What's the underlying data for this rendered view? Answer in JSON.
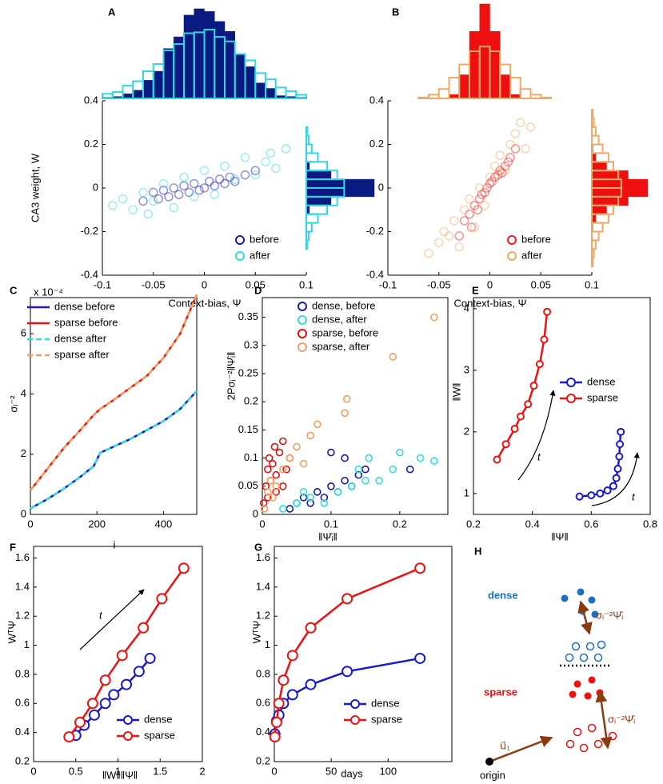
{
  "chart_data": [
    {
      "type": "scatter",
      "panel": "A",
      "ylabel": "CA3 weight, W",
      "xlabel": "Context-bias, Ψ",
      "xlim": [
        -0.1,
        0.1
      ],
      "ylim": [
        -0.4,
        0.4
      ],
      "xticks": [
        -0.1,
        -0.05,
        0,
        0.05,
        0.1
      ],
      "yticks": [
        -0.4,
        -0.2,
        0,
        0.2,
        0.4
      ],
      "marker_opacity": 0.45,
      "legend": "lower right",
      "series": [
        {
          "name": "before",
          "color": "#1a1aa8",
          "x": [
            -0.06,
            -0.05,
            -0.045,
            -0.04,
            -0.035,
            -0.03,
            -0.025,
            -0.02,
            -0.015,
            -0.01,
            -0.005,
            0,
            0.005,
            0.01,
            0.015,
            0.02,
            0.025,
            0.03,
            0.04,
            0.05
          ],
          "values": [
            -0.06,
            -0.02,
            -0.05,
            -0.01,
            -0.04,
            0,
            -0.03,
            0.01,
            -0.02,
            0.02,
            -0.01,
            0,
            0.03,
            0.01,
            0.04,
            0.02,
            0.05,
            0.03,
            0.06,
            0.08
          ]
        },
        {
          "name": "after",
          "color": "#33d6e0",
          "x": [
            -0.09,
            -0.08,
            -0.07,
            -0.06,
            -0.055,
            -0.05,
            -0.04,
            -0.03,
            -0.02,
            -0.01,
            0,
            0.01,
            0.02,
            0.03,
            0.04,
            0.05,
            0.06,
            0.065,
            0.07,
            0.08
          ],
          "values": [
            -0.08,
            -0.05,
            -0.1,
            -0.02,
            -0.12,
            -0.06,
            0.02,
            -0.09,
            0.05,
            -0.04,
            0.08,
            -0.03,
            0.1,
            0.04,
            0.14,
            0.06,
            0.12,
            0.16,
            0.09,
            0.18
          ]
        }
      ],
      "histograms": [
        {
          "side": "top",
          "bins": [
            -0.1,
            -0.09,
            -0.08,
            -0.07,
            -0.06,
            -0.05,
            -0.04,
            -0.03,
            -0.02,
            -0.01,
            0,
            0.01,
            0.02,
            0.03,
            0.04,
            0.05,
            0.06,
            0.07,
            0.08,
            0.09,
            0.1
          ],
          "series": [
            {
              "color": "#0a1a80",
              "filled": true,
              "values": [
                1,
                2,
                5,
                9,
                20,
                30,
                55,
                68,
                92,
                99,
                96,
                85,
                74,
                48,
                35,
                17,
                11,
                3,
                2,
                1
              ]
            },
            {
              "color": "#33d6e0",
              "filled": false,
              "values": [
                5,
                7,
                14,
                19,
                30,
                38,
                53,
                60,
                72,
                73,
                76,
                68,
                63,
                49,
                42,
                28,
                21,
                12,
                8,
                4
              ]
            }
          ]
        },
        {
          "side": "right",
          "bins": [
            -0.4,
            -0.36,
            -0.32,
            -0.28,
            -0.24,
            -0.2,
            -0.16,
            -0.12,
            -0.08,
            -0.04,
            0,
            0.04,
            0.08,
            0.12,
            0.16,
            0.2,
            0.24,
            0.28,
            0.32,
            0.36,
            0.4
          ],
          "series": [
            {
              "color": "#0a1a80",
              "filled": true,
              "values": [
                0,
                0,
                0,
                0,
                0,
                0,
                0,
                4,
                32,
                88,
                88,
                32,
                4,
                0,
                0,
                0,
                0,
                0,
                0,
                0
              ]
            },
            {
              "color": "#33d6e0",
              "filled": false,
              "values": [
                0,
                0,
                0,
                1,
                3,
                7,
                15,
                27,
                40,
                49,
                49,
                40,
                27,
                15,
                7,
                3,
                1,
                0,
                0,
                0
              ]
            }
          ]
        }
      ]
    },
    {
      "type": "scatter",
      "panel": "B",
      "xlabel": "Context-bias, Ψ",
      "xlim": [
        -0.1,
        0.1
      ],
      "ylim": [
        -0.4,
        0.4
      ],
      "xticks": [
        -0.1,
        -0.05,
        0,
        0.05,
        0.1
      ],
      "yticks": [
        -0.4,
        -0.2,
        0,
        0.2,
        0.4
      ],
      "marker_opacity": 0.45,
      "legend": "lower right",
      "series": [
        {
          "name": "before",
          "color": "#ee2020",
          "x": [
            -0.03,
            -0.025,
            -0.02,
            -0.018,
            -0.015,
            -0.012,
            -0.01,
            -0.008,
            -0.005,
            -0.003,
            0,
            0.002,
            0.005,
            0.008,
            0.01,
            0.012,
            0.015,
            0.018,
            0.02,
            0.025
          ],
          "values": [
            -0.22,
            -0.15,
            -0.12,
            -0.18,
            -0.08,
            -0.1,
            -0.05,
            -0.03,
            -0.02,
            0,
            0.02,
            0.03,
            0.05,
            0.06,
            0.08,
            0.07,
            0.1,
            0.12,
            0.14,
            0.18
          ]
        },
        {
          "name": "after",
          "color": "#f0a868",
          "x": [
            -0.06,
            -0.05,
            -0.045,
            -0.04,
            -0.035,
            -0.03,
            -0.025,
            -0.02,
            -0.015,
            -0.01,
            -0.005,
            0,
            0.005,
            0.01,
            0.015,
            0.02,
            0.025,
            0.03,
            0.035,
            0.04
          ],
          "values": [
            -0.3,
            -0.25,
            -0.2,
            -0.22,
            -0.15,
            -0.27,
            -0.1,
            -0.05,
            -0.18,
            0,
            -0.08,
            0.05,
            0.1,
            0.15,
            0.08,
            0.2,
            0.25,
            0.3,
            0.18,
            0.28
          ]
        }
      ],
      "histograms": [
        {
          "side": "top",
          "bins": [
            -0.1,
            -0.09,
            -0.08,
            -0.07,
            -0.06,
            -0.05,
            -0.04,
            -0.03,
            -0.02,
            -0.01,
            0,
            0.01,
            0.02,
            0.03,
            0.04,
            0.05,
            0.06,
            0.07,
            0.08,
            0.09,
            0.1
          ],
          "series": [
            {
              "color": "#ee1010",
              "filled": true,
              "values": [
                0,
                0,
                0,
                0,
                0,
                0,
                4,
                25,
                71,
                100,
                71,
                25,
                4,
                0,
                0,
                0,
                0,
                0,
                0,
                0
              ]
            },
            {
              "color": "#f0a868",
              "filled": false,
              "values": [
                0,
                0,
                0,
                1,
                4,
                10,
                22,
                36,
                50,
                55,
                50,
                36,
                22,
                10,
                4,
                1,
                0,
                0,
                0,
                0
              ]
            }
          ]
        },
        {
          "side": "right",
          "bins": [
            -0.4,
            -0.36,
            -0.32,
            -0.28,
            -0.24,
            -0.2,
            -0.16,
            -0.12,
            -0.08,
            -0.04,
            0,
            0.04,
            0.08,
            0.12,
            0.16,
            0.2,
            0.24,
            0.28,
            0.32,
            0.36,
            0.4
          ],
          "series": [
            {
              "color": "#ee1010",
              "filled": true,
              "values": [
                0,
                0,
                0,
                0,
                0,
                1,
                4,
                15,
                37,
                57,
                57,
                37,
                15,
                4,
                1,
                0,
                0,
                0,
                0,
                0
              ]
            },
            {
              "color": "#f0a868",
              "filled": false,
              "values": [
                0,
                1,
                2,
                4,
                7,
                11,
                17,
                22,
                27,
                30,
                30,
                27,
                22,
                17,
                11,
                7,
                4,
                2,
                1,
                0
              ]
            }
          ]
        }
      ]
    },
    {
      "type": "line",
      "panel": "C",
      "ylabel": "σᵢ⁻²",
      "xlabel": "i",
      "annotation": "x 10⁻⁴",
      "xlim": [
        0,
        500
      ],
      "ylim": [
        0,
        7.2
      ],
      "xticks": [
        0,
        200,
        400
      ],
      "yticks": [
        0,
        2,
        4,
        6
      ],
      "legend": "upper left",
      "x": [
        0,
        50,
        100,
        150,
        190,
        210,
        250,
        300,
        350,
        400,
        450,
        500
      ],
      "series": [
        {
          "name": "dense before",
          "color": "#1a1acc",
          "values": [
            0.2,
            0.5,
            0.85,
            1.25,
            1.6,
            2.05,
            2.25,
            2.5,
            2.8,
            3.1,
            3.5,
            4.1
          ]
        },
        {
          "name": "sparse before",
          "color": "#ee1111",
          "values": [
            0.8,
            1.5,
            2.2,
            2.8,
            3.3,
            3.5,
            3.8,
            4.2,
            4.6,
            5.2,
            6.0,
            7.3
          ]
        },
        {
          "name": "dense after",
          "color": "#33dddd",
          "dash": true,
          "values": [
            0.2,
            0.5,
            0.85,
            1.25,
            1.6,
            2.05,
            2.25,
            2.5,
            2.8,
            3.1,
            3.5,
            4.1
          ]
        },
        {
          "name": "sparse after",
          "color": "#f0a060",
          "dash": true,
          "values": [
            0.8,
            1.5,
            2.2,
            2.8,
            3.3,
            3.5,
            3.8,
            4.2,
            4.6,
            5.2,
            6.0,
            7.3
          ]
        }
      ]
    },
    {
      "type": "scatter",
      "panel": "D",
      "ylabel": "2Pσᵢ⁻²‖Ψ̂ᵢ‖",
      "xlabel": "‖Ψ̂ᵢ‖",
      "xlim": [
        0,
        0.27
      ],
      "ylim": [
        0,
        0.385
      ],
      "xticks": [
        0,
        0.1,
        0.2
      ],
      "yticks": [
        0,
        0.05,
        0.1,
        0.15,
        0.2,
        0.25,
        0.3,
        0.35
      ],
      "marker_opacity": 1,
      "legend": "upper left",
      "series": [
        {
          "name": "dense, before",
          "color": "#1a1aa8",
          "x": [
            0.05,
            0.06,
            0.07,
            0.08,
            0.09,
            0.1,
            0.11,
            0.12,
            0.13,
            0.14,
            0.15,
            0.1,
            0.12,
            0.215,
            0.04
          ],
          "values": [
            0.02,
            0.03,
            0.02,
            0.04,
            0.03,
            0.05,
            0.04,
            0.06,
            0.05,
            0.07,
            0.08,
            0.11,
            0.1,
            0.08,
            0.01
          ]
        },
        {
          "name": "dense, after",
          "color": "#33dddd",
          "x": [
            0.03,
            0.05,
            0.07,
            0.09,
            0.11,
            0.13,
            0.15,
            0.17,
            0.19,
            0.2,
            0.23,
            0.25,
            0.14,
            0.155,
            0.06
          ],
          "values": [
            0.01,
            0.02,
            0.03,
            0.02,
            0.04,
            0.05,
            0.06,
            0.06,
            0.08,
            0.11,
            0.1,
            0.095,
            0.08,
            0.1,
            0.04
          ]
        },
        {
          "name": "sparse, before",
          "color": "#dd1111",
          "x": [
            0.002,
            0.005,
            0.008,
            0.01,
            0.012,
            0.015,
            0.018,
            0.02,
            0.025,
            0.03,
            0.035,
            0.04,
            0.008,
            0.02,
            0.03
          ],
          "values": [
            0.02,
            0.05,
            0.08,
            0.1,
            0.06,
            0.09,
            0.12,
            0.07,
            0.11,
            0.13,
            0.08,
            0.1,
            0.03,
            0.04,
            0.05
          ]
        },
        {
          "name": "sparse, after",
          "color": "#f0a060",
          "x": [
            0.003,
            0.008,
            0.012,
            0.02,
            0.03,
            0.04,
            0.05,
            0.06,
            0.07,
            0.08,
            0.12,
            0.123,
            0.19,
            0.25,
            0.015
          ],
          "values": [
            0.01,
            0.04,
            0.06,
            0.05,
            0.08,
            0.1,
            0.12,
            0.09,
            0.14,
            0.16,
            0.18,
            0.205,
            0.28,
            0.35,
            0.03
          ]
        }
      ]
    },
    {
      "type": "line",
      "panel": "E",
      "ylabel": "‖W‖",
      "xlabel": "‖Ψ‖",
      "markers": true,
      "annotations": [
        "t",
        "t"
      ],
      "xlim": [
        0.2,
        0.8
      ],
      "ylim": [
        0.66,
        4.18
      ],
      "xticks": [
        0.2,
        0.4,
        0.6,
        0.8
      ],
      "yticks": [
        1,
        2,
        3,
        4
      ],
      "legend": "upper right",
      "series": [
        {
          "name": "dense",
          "color": "#1a1acc",
          "x": [
            0.56,
            0.6,
            0.63,
            0.655,
            0.675,
            0.685,
            0.69,
            0.695,
            0.697,
            0.7
          ],
          "values": [
            0.95,
            0.97,
            1.0,
            1.05,
            1.12,
            1.25,
            1.4,
            1.6,
            1.8,
            2.0
          ]
        },
        {
          "name": "sparse",
          "color": "#ee1111",
          "x": [
            0.28,
            0.31,
            0.34,
            0.36,
            0.385,
            0.405,
            0.425,
            0.44,
            0.45
          ],
          "values": [
            1.55,
            1.8,
            2.05,
            2.25,
            2.45,
            2.75,
            3.1,
            3.5,
            3.95
          ]
        }
      ]
    },
    {
      "type": "line",
      "panel": "F",
      "ylabel": "WᵀΨ",
      "xlabel": "‖W‖‖Ψ‖",
      "markers": true,
      "annotations": [
        "t"
      ],
      "xlim": [
        0,
        2
      ],
      "ylim": [
        0.2,
        1.68
      ],
      "xticks": [
        0,
        0.5,
        1,
        1.5,
        2
      ],
      "yticks": [
        0.2,
        0.4,
        0.6,
        0.8,
        1,
        1.2,
        1.4,
        1.6
      ],
      "legend": "lower right",
      "series": [
        {
          "name": "dense",
          "color": "#1a1acc",
          "x": [
            0.5,
            0.6,
            0.72,
            0.85,
            0.95,
            1.1,
            1.25,
            1.38
          ],
          "values": [
            0.38,
            0.45,
            0.52,
            0.6,
            0.66,
            0.73,
            0.82,
            0.91
          ]
        },
        {
          "name": "sparse",
          "color": "#ee1111",
          "x": [
            0.42,
            0.55,
            0.7,
            0.85,
            1.05,
            1.3,
            1.52,
            1.78
          ],
          "values": [
            0.37,
            0.47,
            0.6,
            0.76,
            0.93,
            1.12,
            1.32,
            1.53
          ]
        }
      ]
    },
    {
      "type": "line",
      "panel": "G",
      "ylabel": "WᵀΨ",
      "xlabel": "days",
      "markers": true,
      "xlim": [
        0,
        156
      ],
      "ylim": [
        0.2,
        1.68
      ],
      "xticks": [
        0,
        50,
        100
      ],
      "yticks": [
        0.2,
        0.4,
        0.6,
        0.8,
        1,
        1.2,
        1.4,
        1.6
      ],
      "legend": "lower right",
      "x": [
        0.5,
        2,
        4,
        8,
        16,
        32,
        64,
        128
      ],
      "series": [
        {
          "name": "dense",
          "color": "#1a1acc",
          "values": [
            0.39,
            0.48,
            0.52,
            0.6,
            0.66,
            0.73,
            0.82,
            0.91
          ]
        },
        {
          "name": "sparse",
          "color": "#ee1111",
          "values": [
            0.37,
            0.47,
            0.6,
            0.76,
            0.93,
            1.12,
            1.32,
            1.53
          ]
        }
      ]
    }
  ],
  "diagram": {
    "panel": "H",
    "labels": [
      "dense",
      "σᵢ⁻²Ψ̂ᵢ",
      "sparse",
      "σᵢ⁻²Ψ̂ᵢ",
      "u⃗₁",
      "origin"
    ]
  }
}
